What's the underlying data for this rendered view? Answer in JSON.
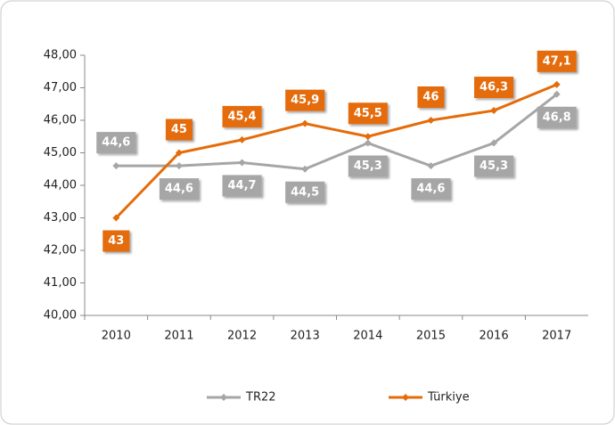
{
  "chart_data": {
    "type": "line",
    "categories": [
      "2010",
      "2011",
      "2012",
      "2013",
      "2014",
      "2015",
      "2016",
      "2017"
    ],
    "series": [
      {
        "name": "TR22",
        "color": "#a6a6a6",
        "values": [
          44.6,
          44.6,
          44.7,
          44.5,
          45.3,
          44.6,
          45.3,
          46.8
        ],
        "value_labels": [
          "44,6",
          "44,6",
          "44,7",
          "44,5",
          "45,3",
          "44,6",
          "45,3",
          "46,8"
        ]
      },
      {
        "name": "Türkiye",
        "color": "#e46c0a",
        "values": [
          43,
          45,
          45.4,
          45.9,
          45.5,
          46,
          46.3,
          47.1
        ],
        "value_labels": [
          "43",
          "45",
          "45,4",
          "45,9",
          "45,5",
          "46",
          "46,3",
          "47,1"
        ]
      }
    ],
    "ylim": [
      40,
      48
    ],
    "yticks": [
      {
        "value": 40,
        "label": "40,00"
      },
      {
        "value": 41,
        "label": "41,00"
      },
      {
        "value": 42,
        "label": "42,00"
      },
      {
        "value": 43,
        "label": "43,00"
      },
      {
        "value": 44,
        "label": "44,00"
      },
      {
        "value": 45,
        "label": "45,00"
      },
      {
        "value": 46,
        "label": "46,00"
      },
      {
        "value": 47,
        "label": "47,00"
      },
      {
        "value": 48,
        "label": "48,00"
      }
    ],
    "legend": "bottom"
  }
}
